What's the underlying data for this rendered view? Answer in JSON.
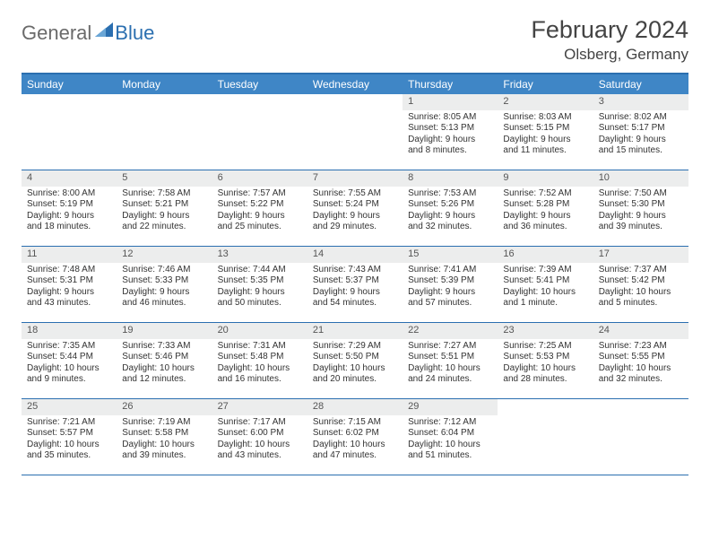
{
  "brand": {
    "part1": "General",
    "part2": "Blue",
    "tri_color": "#2b6fb0"
  },
  "title": "February 2024",
  "location": "Olsberg, Germany",
  "colors": {
    "header_bar": "#3f86c6",
    "rule": "#2b6fb0",
    "daynum_bg": "#eceded",
    "text": "#333333"
  },
  "dow": [
    "Sunday",
    "Monday",
    "Tuesday",
    "Wednesday",
    "Thursday",
    "Friday",
    "Saturday"
  ],
  "weeks": [
    [
      {
        "n": "",
        "sr": "",
        "ss": "",
        "dl": ""
      },
      {
        "n": "",
        "sr": "",
        "ss": "",
        "dl": ""
      },
      {
        "n": "",
        "sr": "",
        "ss": "",
        "dl": ""
      },
      {
        "n": "",
        "sr": "",
        "ss": "",
        "dl": ""
      },
      {
        "n": "1",
        "sr": "Sunrise: 8:05 AM",
        "ss": "Sunset: 5:13 PM",
        "dl": "Daylight: 9 hours and 8 minutes."
      },
      {
        "n": "2",
        "sr": "Sunrise: 8:03 AM",
        "ss": "Sunset: 5:15 PM",
        "dl": "Daylight: 9 hours and 11 minutes."
      },
      {
        "n": "3",
        "sr": "Sunrise: 8:02 AM",
        "ss": "Sunset: 5:17 PM",
        "dl": "Daylight: 9 hours and 15 minutes."
      }
    ],
    [
      {
        "n": "4",
        "sr": "Sunrise: 8:00 AM",
        "ss": "Sunset: 5:19 PM",
        "dl": "Daylight: 9 hours and 18 minutes."
      },
      {
        "n": "5",
        "sr": "Sunrise: 7:58 AM",
        "ss": "Sunset: 5:21 PM",
        "dl": "Daylight: 9 hours and 22 minutes."
      },
      {
        "n": "6",
        "sr": "Sunrise: 7:57 AM",
        "ss": "Sunset: 5:22 PM",
        "dl": "Daylight: 9 hours and 25 minutes."
      },
      {
        "n": "7",
        "sr": "Sunrise: 7:55 AM",
        "ss": "Sunset: 5:24 PM",
        "dl": "Daylight: 9 hours and 29 minutes."
      },
      {
        "n": "8",
        "sr": "Sunrise: 7:53 AM",
        "ss": "Sunset: 5:26 PM",
        "dl": "Daylight: 9 hours and 32 minutes."
      },
      {
        "n": "9",
        "sr": "Sunrise: 7:52 AM",
        "ss": "Sunset: 5:28 PM",
        "dl": "Daylight: 9 hours and 36 minutes."
      },
      {
        "n": "10",
        "sr": "Sunrise: 7:50 AM",
        "ss": "Sunset: 5:30 PM",
        "dl": "Daylight: 9 hours and 39 minutes."
      }
    ],
    [
      {
        "n": "11",
        "sr": "Sunrise: 7:48 AM",
        "ss": "Sunset: 5:31 PM",
        "dl": "Daylight: 9 hours and 43 minutes."
      },
      {
        "n": "12",
        "sr": "Sunrise: 7:46 AM",
        "ss": "Sunset: 5:33 PM",
        "dl": "Daylight: 9 hours and 46 minutes."
      },
      {
        "n": "13",
        "sr": "Sunrise: 7:44 AM",
        "ss": "Sunset: 5:35 PM",
        "dl": "Daylight: 9 hours and 50 minutes."
      },
      {
        "n": "14",
        "sr": "Sunrise: 7:43 AM",
        "ss": "Sunset: 5:37 PM",
        "dl": "Daylight: 9 hours and 54 minutes."
      },
      {
        "n": "15",
        "sr": "Sunrise: 7:41 AM",
        "ss": "Sunset: 5:39 PM",
        "dl": "Daylight: 9 hours and 57 minutes."
      },
      {
        "n": "16",
        "sr": "Sunrise: 7:39 AM",
        "ss": "Sunset: 5:41 PM",
        "dl": "Daylight: 10 hours and 1 minute."
      },
      {
        "n": "17",
        "sr": "Sunrise: 7:37 AM",
        "ss": "Sunset: 5:42 PM",
        "dl": "Daylight: 10 hours and 5 minutes."
      }
    ],
    [
      {
        "n": "18",
        "sr": "Sunrise: 7:35 AM",
        "ss": "Sunset: 5:44 PM",
        "dl": "Daylight: 10 hours and 9 minutes."
      },
      {
        "n": "19",
        "sr": "Sunrise: 7:33 AM",
        "ss": "Sunset: 5:46 PM",
        "dl": "Daylight: 10 hours and 12 minutes."
      },
      {
        "n": "20",
        "sr": "Sunrise: 7:31 AM",
        "ss": "Sunset: 5:48 PM",
        "dl": "Daylight: 10 hours and 16 minutes."
      },
      {
        "n": "21",
        "sr": "Sunrise: 7:29 AM",
        "ss": "Sunset: 5:50 PM",
        "dl": "Daylight: 10 hours and 20 minutes."
      },
      {
        "n": "22",
        "sr": "Sunrise: 7:27 AM",
        "ss": "Sunset: 5:51 PM",
        "dl": "Daylight: 10 hours and 24 minutes."
      },
      {
        "n": "23",
        "sr": "Sunrise: 7:25 AM",
        "ss": "Sunset: 5:53 PM",
        "dl": "Daylight: 10 hours and 28 minutes."
      },
      {
        "n": "24",
        "sr": "Sunrise: 7:23 AM",
        "ss": "Sunset: 5:55 PM",
        "dl": "Daylight: 10 hours and 32 minutes."
      }
    ],
    [
      {
        "n": "25",
        "sr": "Sunrise: 7:21 AM",
        "ss": "Sunset: 5:57 PM",
        "dl": "Daylight: 10 hours and 35 minutes."
      },
      {
        "n": "26",
        "sr": "Sunrise: 7:19 AM",
        "ss": "Sunset: 5:58 PM",
        "dl": "Daylight: 10 hours and 39 minutes."
      },
      {
        "n": "27",
        "sr": "Sunrise: 7:17 AM",
        "ss": "Sunset: 6:00 PM",
        "dl": "Daylight: 10 hours and 43 minutes."
      },
      {
        "n": "28",
        "sr": "Sunrise: 7:15 AM",
        "ss": "Sunset: 6:02 PM",
        "dl": "Daylight: 10 hours and 47 minutes."
      },
      {
        "n": "29",
        "sr": "Sunrise: 7:12 AM",
        "ss": "Sunset: 6:04 PM",
        "dl": "Daylight: 10 hours and 51 minutes."
      },
      {
        "n": "",
        "sr": "",
        "ss": "",
        "dl": ""
      },
      {
        "n": "",
        "sr": "",
        "ss": "",
        "dl": ""
      }
    ]
  ]
}
